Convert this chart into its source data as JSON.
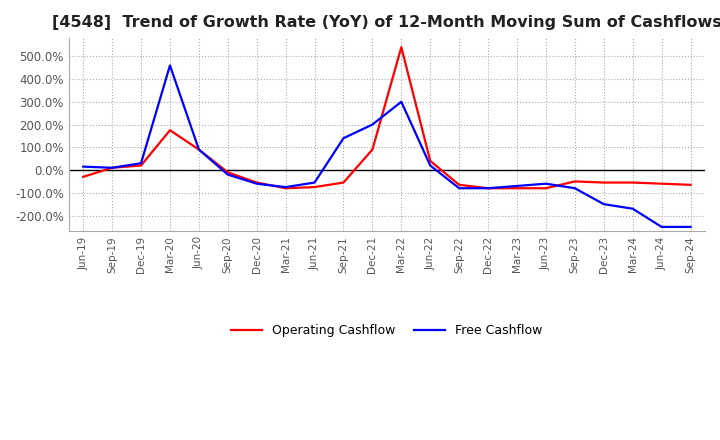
{
  "title": "[4548]  Trend of Growth Rate (YoY) of 12-Month Moving Sum of Cashflows",
  "title_fontsize": 11.5,
  "title_color": "#222222",
  "background_color": "#ffffff",
  "plot_background_color": "#ffffff",
  "grid_color": "#aaaaaa",
  "ylim": [
    -270,
    580
  ],
  "yticks": [
    -200,
    -100,
    0,
    100,
    200,
    300,
    400,
    500
  ],
  "ytick_labels": [
    "-200.0%",
    "-100.0%",
    "0.0%",
    "100.0%",
    "200.0%",
    "300.0%",
    "400.0%",
    "500.0%"
  ],
  "x_labels": [
    "Jun-19",
    "Sep-19",
    "Dec-19",
    "Mar-20",
    "Jun-20",
    "Sep-20",
    "Dec-20",
    "Mar-21",
    "Jun-21",
    "Sep-21",
    "Dec-21",
    "Mar-22",
    "Jun-22",
    "Sep-22",
    "Dec-22",
    "Mar-23",
    "Jun-23",
    "Sep-23",
    "Dec-23",
    "Mar-24",
    "Jun-24",
    "Sep-24"
  ],
  "operating_cashflow": [
    -30,
    10,
    20,
    175,
    90,
    -10,
    -55,
    -80,
    -75,
    -55,
    90,
    540,
    40,
    -65,
    -80,
    -80,
    -80,
    -50,
    -55,
    -55,
    -60,
    -65
  ],
  "free_cashflow": [
    15,
    10,
    30,
    460,
    90,
    -20,
    -60,
    -75,
    -55,
    140,
    200,
    300,
    20,
    -80,
    -80,
    -70,
    -60,
    -80,
    -150,
    -170,
    -250,
    -250
  ],
  "operating_color": "#ff0000",
  "free_color": "#0000ff",
  "legend_labels": [
    "Operating Cashflow",
    "Free Cashflow"
  ],
  "line_width": 1.6,
  "xlabel_fontsize": 7.5,
  "ylabel_fontsize": 8.5
}
